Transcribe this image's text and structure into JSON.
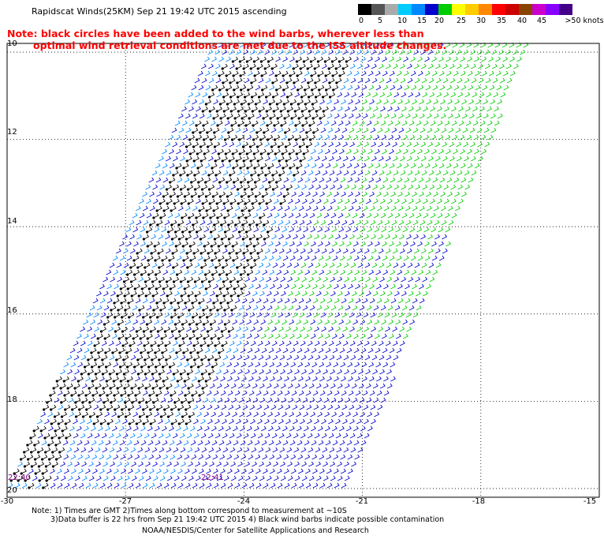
{
  "header": {
    "title": "Rapidscat Winds(25KM) Sep 21 19:42 UTC 2015 ascending",
    "note_line1": "Note: black circles have been added to the wind barbs, wherever less than",
    "note_line2": "optimal wind retrieval conditions are met due to the ISS altitude changes."
  },
  "legend": {
    "colors": [
      "#000000",
      "#555555",
      "#aaaaaa",
      "#00ccff",
      "#0088ff",
      "#0000cc",
      "#00cc00",
      "#ffff00",
      "#ffcc00",
      "#ff8800",
      "#ff0000",
      "#cc0000",
      "#884400",
      "#cc00cc",
      "#8800ff",
      "#440088"
    ],
    "labels": [
      "0",
      "5",
      "10",
      "15",
      "20",
      "25",
      "30",
      "35",
      "40",
      "45",
      ">50 knots"
    ],
    "units": "knots"
  },
  "map": {
    "lon_ticks": [
      "-30",
      "-27",
      "-24",
      "-21",
      "-18",
      "-15"
    ],
    "lat_ticks": [
      "10",
      "12",
      "14",
      "16",
      "18",
      "20"
    ],
    "lon_range": [
      -30,
      -15
    ],
    "lat_range": [
      9.8,
      20.2
    ],
    "grid_style": "dotted",
    "swath_timestamps": [
      "22:40",
      "22:41"
    ]
  },
  "footer": {
    "note_line1": "Note: 1) Times are GMT 2)Times along bottom correspond to measurement at ~10S",
    "note_line2": "3)Data buffer is 22 hrs from Sep 21 19:42 UTC 2015 4) Black wind barbs indicate possible contamination",
    "credit": "NOAA/NESDIS/Center for Satellite Applications and Research"
  }
}
